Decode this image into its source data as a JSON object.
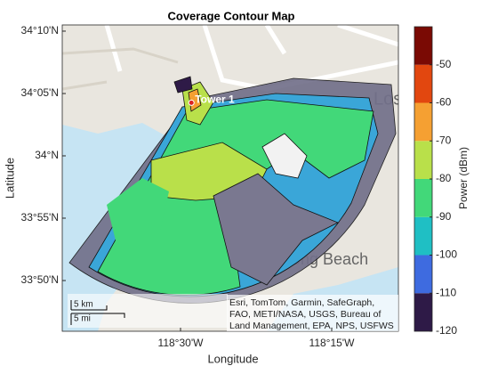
{
  "map": {
    "title": "Coverage Contour Map",
    "xlabel": "Longitude",
    "ylabel": "Latitude",
    "xlim": [
      -118.6956,
      -118.1397
    ],
    "ylim": [
      33.7655,
      34.175
    ],
    "xticks": [
      {
        "value": -118.5,
        "label": "118°30'W"
      },
      {
        "value": -118.25,
        "label": "118°15'W"
      }
    ],
    "yticks": [
      {
        "value": 34.1667,
        "label": "34°10'N"
      },
      {
        "value": 34.0833,
        "label": "34°05'N"
      },
      {
        "value": 34,
        "label": "34°N"
      },
      {
        "value": 33.9167,
        "label": "33°55'N"
      },
      {
        "value": 33.8333,
        "label": "33°50'N"
      }
    ],
    "tower": {
      "label": "Tower 1",
      "lon": -118.482,
      "lat": 34.071
    },
    "basemap_labels": [
      "Los An",
      "Long Beach"
    ],
    "scalebar": [
      "5 km",
      "5 mi"
    ],
    "attribution": [
      "Esri, TomTom, Garmin, SafeGraph,",
      "FAO, METI/NASA, USGS, Bureau of",
      "Land Management, EPA, NPS, USFWS"
    ],
    "colorbar": {
      "label": "Power (dBm)",
      "lim": [
        -120,
        -40
      ],
      "ticks": [
        -120,
        -110,
        -100,
        -90,
        -80,
        -70,
        -60,
        -50
      ],
      "band_edges": [
        -120,
        -110,
        -100,
        -90,
        -80,
        -70,
        -60,
        -50,
        -40
      ],
      "colors": [
        "#2e1a47",
        "#3e6be0",
        "#1fbfc4",
        "#42d879",
        "#b9e04a",
        "#f5a032",
        "#e2470f",
        "#7a0a04"
      ]
    }
  }
}
